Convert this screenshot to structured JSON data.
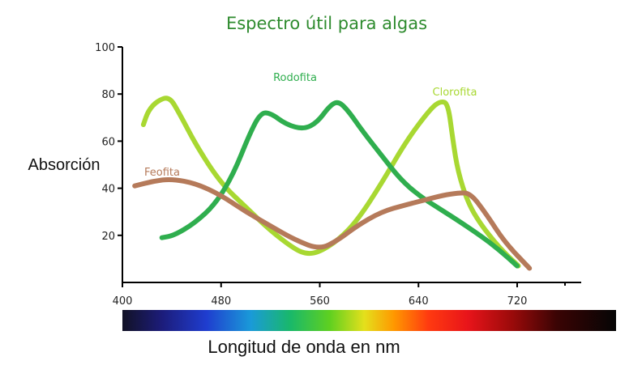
{
  "chart_data": {
    "type": "line",
    "title": "Espectro útil para algas",
    "xlabel": "Longitud de onda en nm",
    "ylabel": "Absorción",
    "xlim": [
      400,
      780
    ],
    "ylim": [
      0,
      100
    ],
    "x_ticks": [
      400,
      480,
      560,
      640,
      720
    ],
    "y_ticks": [
      20,
      40,
      60,
      80,
      100
    ],
    "grid": false,
    "legend": "labels placed next to curves",
    "spectrum_bar": true,
    "series": [
      {
        "name": "Clorofita",
        "color": "#a8d832",
        "x": [
          417,
          421,
          428,
          438,
          446,
          460,
          480,
          500,
          520,
          540,
          550,
          560,
          575,
          590,
          610,
          630,
          650,
          658,
          664,
          668,
          672,
          680,
          690,
          705,
          721
        ],
        "y": [
          67,
          73,
          77,
          79,
          72,
          58,
          42,
          32,
          22,
          14,
          12,
          13,
          18,
          26,
          42,
          60,
          74,
          77,
          76,
          60,
          47,
          34,
          25,
          15,
          7
        ]
      },
      {
        "name": "Rodofita",
        "color": "#2fae4e",
        "x": [
          432,
          442,
          458,
          475,
          490,
          503,
          512,
          520,
          533,
          547,
          558,
          568,
          575,
          583,
          595,
          610,
          625,
          640,
          655,
          670,
          690,
          705,
          720
        ],
        "y": [
          19,
          20,
          25,
          33,
          46,
          63,
          72,
          72,
          67,
          65,
          68,
          75,
          77,
          73,
          64,
          54,
          44,
          37,
          32,
          27,
          20,
          14,
          7
        ]
      },
      {
        "name": "Feofita",
        "color": "#b57a5a",
        "x": [
          410,
          425,
          440,
          460,
          480,
          500,
          520,
          540,
          560,
          575,
          590,
          610,
          630,
          645,
          660,
          672,
          682,
          695,
          710,
          730
        ],
        "y": [
          41,
          43,
          44,
          42,
          37,
          30,
          24,
          18,
          14,
          18,
          24,
          30,
          33,
          35,
          37,
          38,
          38,
          29,
          17,
          6
        ]
      }
    ]
  }
}
